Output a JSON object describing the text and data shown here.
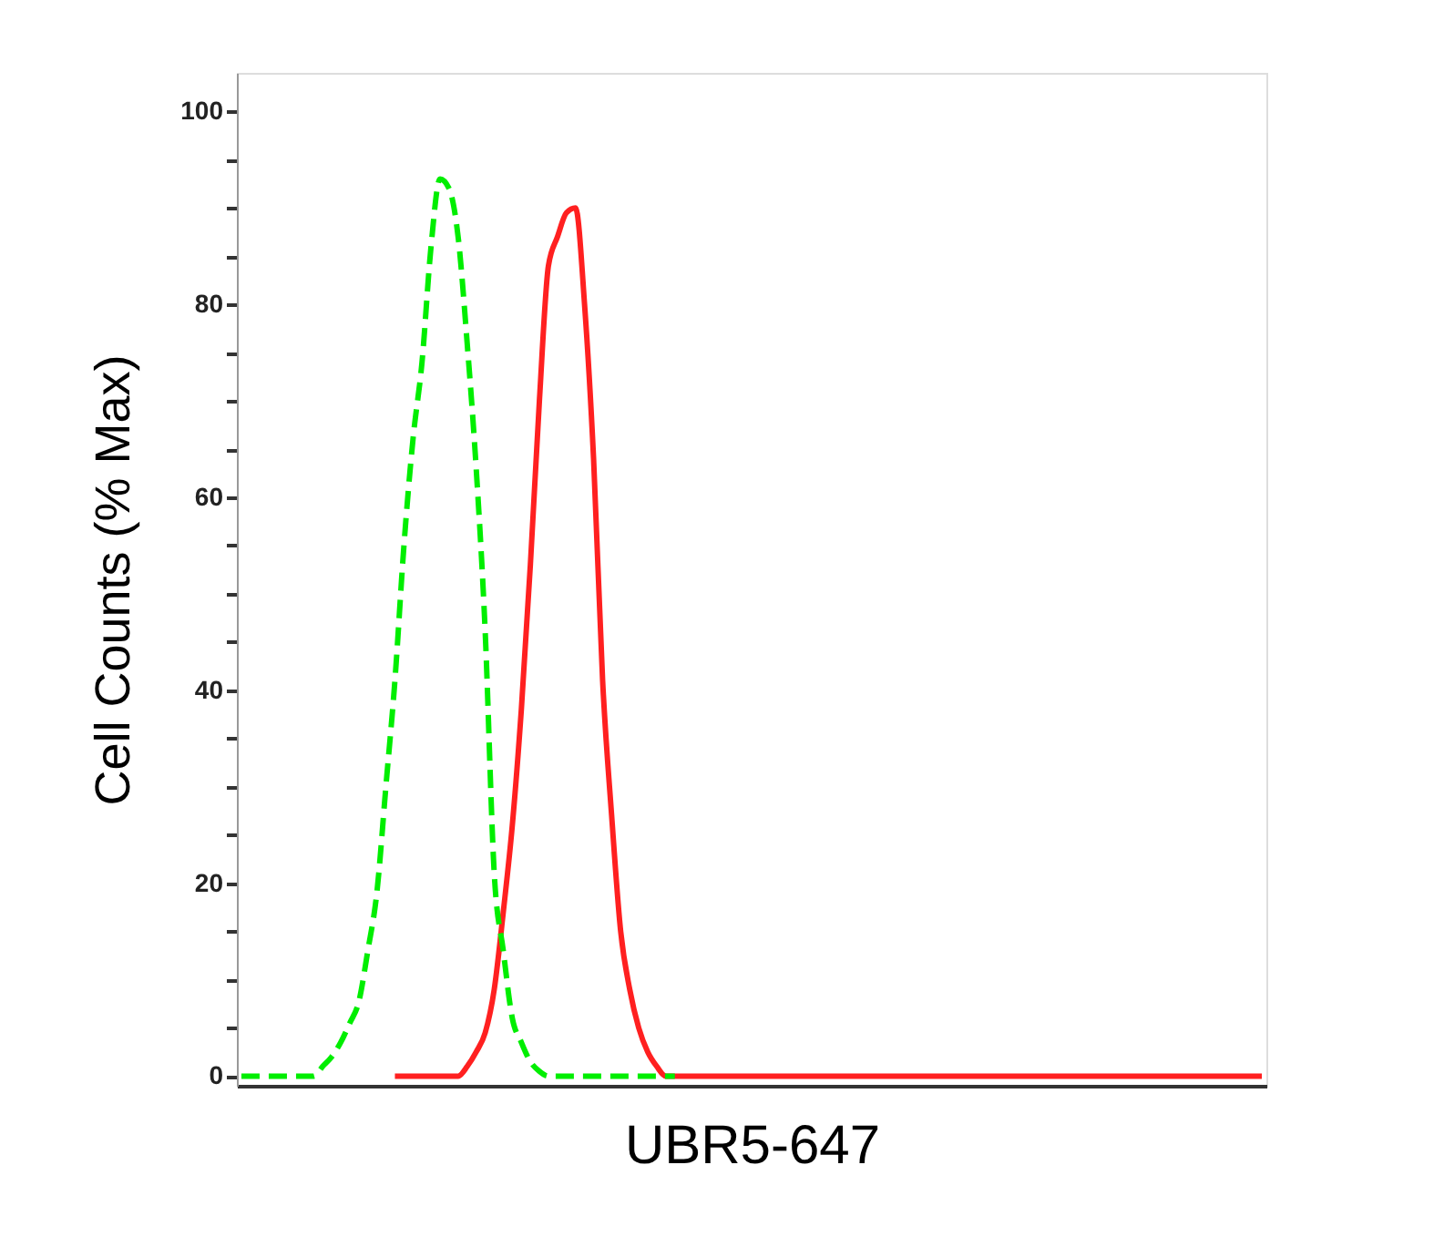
{
  "chart_data": {
    "type": "line",
    "ylabel": "Cell Counts (% Max)",
    "xlabel": "UBR5-647",
    "categories": [
      null,
      null,
      null,
      null,
      null,
      null,
      null,
      null,
      null,
      null,
      null,
      null,
      null,
      null,
      null,
      null,
      null,
      null,
      null,
      null,
      null,
      null,
      null,
      null,
      null,
      null,
      null,
      null,
      null,
      null,
      null,
      null,
      null,
      null,
      null,
      null,
      null,
      null,
      null,
      null,
      null,
      null,
      null,
      null,
      null,
      null,
      null,
      null,
      null,
      null,
      null,
      null,
      null,
      null,
      null,
      null,
      null,
      null,
      null,
      null,
      null,
      null,
      null,
      null,
      null,
      null,
      null,
      null,
      null,
      null,
      null,
      null,
      null,
      null,
      null,
      null,
      null,
      null,
      null,
      null,
      null,
      null,
      null,
      null,
      null,
      null,
      null,
      null,
      null,
      null,
      null,
      null,
      null,
      null,
      null,
      null,
      null,
      null,
      null,
      null,
      null,
      null,
      null,
      null,
      null,
      null,
      null,
      null,
      null,
      null,
      null,
      null,
      null,
      null
    ],
    "series": [
      {
        "color": "#00ee00",
        "line_style": "dashed",
        "values": [
          0,
          0,
          0,
          0,
          0,
          0,
          0,
          0,
          0,
          1,
          2,
          3.5,
          5.5,
          7.7,
          13,
          19,
          30,
          41,
          55,
          66,
          74,
          86,
          93,
          92,
          87,
          76,
          63,
          46,
          21,
          13,
          6,
          3.5,
          1.5,
          0.5,
          0,
          0,
          0,
          0,
          0,
          0,
          0,
          0,
          0,
          0,
          0,
          0,
          0,
          0,
          0,
          null,
          null,
          null,
          null,
          null,
          null,
          null,
          null,
          null,
          null,
          null,
          null,
          null,
          null,
          null,
          null,
          null,
          null,
          null,
          null,
          null,
          null,
          null,
          null,
          null,
          null,
          null,
          null,
          null,
          null,
          null,
          null,
          null,
          null,
          null,
          null,
          null,
          null,
          null,
          null,
          null,
          null,
          null,
          null,
          null,
          null,
          null,
          null,
          null,
          null,
          null,
          null,
          null,
          null,
          null,
          null,
          null,
          null,
          null,
          null,
          null,
          null,
          null,
          null,
          null
        ]
      },
      {
        "color": "#ff2020",
        "line_style": "solid",
        "values": [
          null,
          null,
          null,
          null,
          null,
          null,
          null,
          null,
          null,
          null,
          null,
          null,
          null,
          null,
          null,
          null,
          null,
          0,
          0,
          0,
          0,
          0,
          0,
          0,
          0,
          1,
          2.5,
          4.5,
          9,
          17,
          26,
          38,
          53,
          70,
          84,
          87,
          89.5,
          90,
          80,
          64,
          41,
          27,
          15,
          9,
          5,
          2.5,
          1,
          0,
          0,
          0,
          0,
          0,
          0,
          0,
          0,
          0,
          0,
          0,
          0,
          0,
          0,
          0,
          0,
          0,
          0,
          0,
          0,
          0,
          0,
          0,
          0,
          0,
          0,
          0,
          0,
          0,
          0,
          0,
          0,
          0,
          0,
          0,
          0,
          0,
          0,
          0,
          0,
          0,
          0,
          0,
          0,
          0,
          0,
          0,
          0,
          0,
          0,
          0,
          0,
          0,
          0,
          0,
          0,
          0,
          0,
          0,
          0,
          0,
          0,
          0,
          0,
          0,
          0,
          0
        ]
      }
    ],
    "ylim": [
      -1,
      104
    ],
    "yticks": [
      0,
      {
        "value": 5,
        "label": null
      },
      {
        "value": 10,
        "label": null
      },
      {
        "value": 15,
        "label": null
      },
      20,
      {
        "value": 25,
        "label": null
      },
      {
        "value": 30,
        "label": null
      },
      {
        "value": 35,
        "label": null
      },
      40,
      {
        "value": 45,
        "label": null
      },
      {
        "value": 50,
        "label": null
      },
      {
        "value": 55,
        "label": null
      },
      60,
      {
        "value": 65,
        "label": null
      },
      {
        "value": 70,
        "label": null
      },
      {
        "value": 75,
        "label": null
      },
      80,
      {
        "value": 85,
        "label": null
      },
      {
        "value": 90,
        "label": null
      },
      {
        "value": 95,
        "label": null
      },
      100
    ],
    "tick_labels": "y",
    "grid": false
  }
}
